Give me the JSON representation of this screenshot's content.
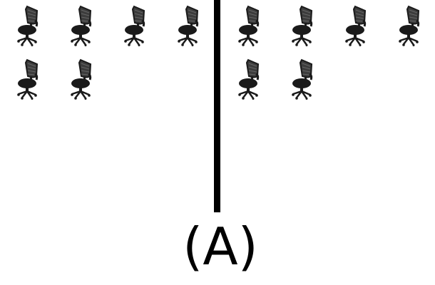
{
  "caption": "(A)",
  "chair_icon": "office-chair-icon",
  "colors": {
    "background": "#ffffff",
    "divider": "#000000",
    "chair_dark": "#1a1a1a",
    "chair_mesh": "#3c3c3c"
  },
  "groups": [
    {
      "name": "left",
      "chair_count": 6
    },
    {
      "name": "right",
      "chair_count": 6
    }
  ]
}
